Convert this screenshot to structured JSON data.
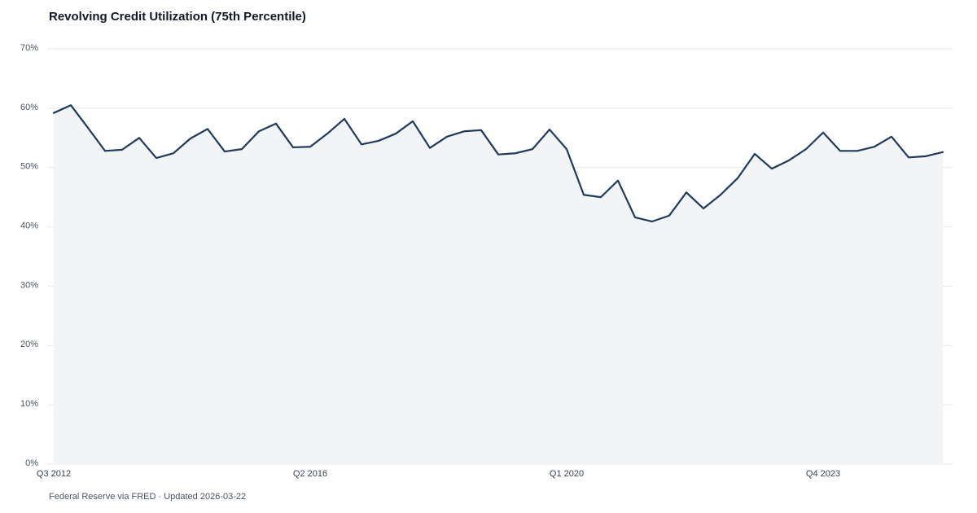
{
  "chart_data": {
    "type": "line",
    "title": "Revolving Credit Utilization (75th Percentile)",
    "source": "Federal Reserve via FRED · Updated 2026-03-22",
    "categories": [
      "Q3 2012",
      null,
      null,
      null,
      null,
      null,
      null,
      null,
      null,
      null,
      null,
      null,
      null,
      null,
      null,
      "Q2 2016",
      null,
      null,
      null,
      null,
      null,
      null,
      null,
      null,
      null,
      null,
      null,
      null,
      null,
      null,
      "Q1 2020",
      null,
      null,
      null,
      null,
      null,
      null,
      null,
      null,
      null,
      null,
      null,
      null,
      null,
      null,
      "Q4 2023",
      null,
      null,
      null,
      null,
      null,
      null,
      null
    ],
    "series": [
      {
        "name": "Revolving Credit Utilization (75th Percentile)",
        "color": "#1f3a5f",
        "values": [
          59.2,
          60.5,
          56.7,
          52.8,
          53.0,
          55.0,
          51.6,
          52.4,
          54.9,
          56.5,
          52.7,
          53.1,
          56.1,
          57.4,
          53.4,
          53.5,
          55.7,
          58.2,
          53.9,
          54.5,
          55.7,
          57.8,
          53.3,
          55.2,
          56.1,
          56.3,
          52.2,
          52.4,
          53.1,
          56.4,
          53.1,
          45.4,
          45.0,
          47.8,
          41.6,
          40.9,
          41.9,
          45.8,
          43.1,
          45.4,
          48.2,
          52.3,
          49.8,
          51.2,
          53.1,
          55.9,
          52.8,
          52.8,
          53.5,
          55.2,
          51.7,
          51.9,
          52.6
        ]
      }
    ],
    "area_color": "#f3f4f6",
    "ylim": [
      0,
      70
    ],
    "yticks": [
      {
        "value": 0,
        "label": "0%"
      },
      {
        "value": 10,
        "label": "10%"
      },
      {
        "value": 20,
        "label": "20%"
      },
      {
        "value": 30,
        "label": "30%"
      },
      {
        "value": 40,
        "label": "40%"
      },
      {
        "value": 50,
        "label": "50%"
      },
      {
        "value": 60,
        "label": "60%"
      },
      {
        "value": 70,
        "label": "70%"
      }
    ],
    "grid": true
  }
}
